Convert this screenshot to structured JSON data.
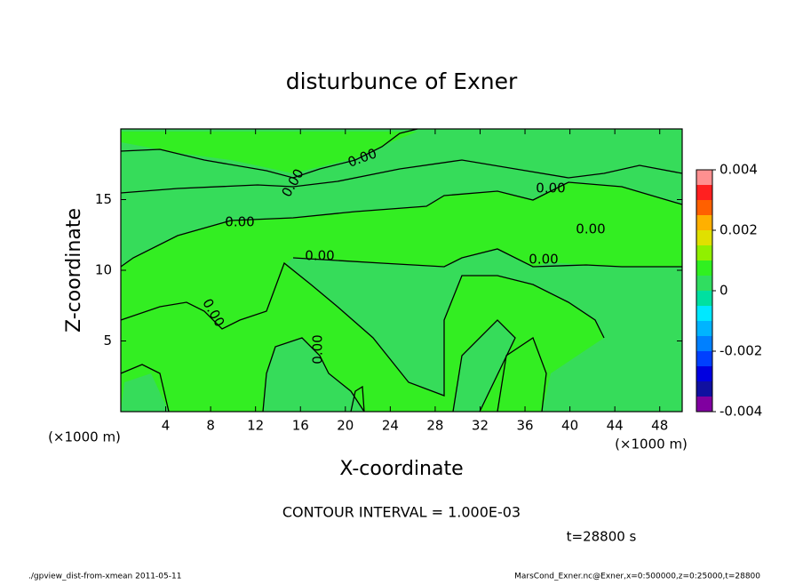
{
  "chart_data": {
    "type": "contour",
    "title": "disturbunce of Exner",
    "x_label": "X-coordinate",
    "y_label": "Z-coordinate",
    "x_unit_left": "(×1000 m)",
    "x_unit_right": "(×1000 m)",
    "xlim": [
      0,
      50
    ],
    "xticks": [
      4,
      8,
      12,
      16,
      20,
      24,
      28,
      32,
      36,
      40,
      44,
      48
    ],
    "ylim": [
      0,
      20
    ],
    "yticks": [
      5,
      10,
      15
    ],
    "contour_labels": [
      "0.00",
      "0.00",
      "0.00",
      "0.00",
      "0.00",
      "0.00",
      "0.00",
      "0.00",
      "0.00"
    ],
    "colorbar": {
      "lim": [
        -0.004,
        0.004
      ],
      "ticks": [
        -0.004,
        -0.002,
        0,
        0.002,
        0.004
      ],
      "colors": [
        "#8000a0",
        "#1010a0",
        "#0000e0",
        "#0040ff",
        "#0080ff",
        "#00b4ff",
        "#00e8ff",
        "#00e0a0",
        "#30dd60",
        "#30f020",
        "#90f000",
        "#e0e000",
        "#ffb000",
        "#ff6000",
        "#ff2020",
        "#ff9090"
      ]
    },
    "contour_interval": "CONTOUR INTERVAL = 1.000E-03",
    "time": "t=28800 s",
    "footer_left": "./gpview_dist-from-xmean  2011-05-11",
    "footer_right": "MarsCond_Exner.nc@Exner,x=0:500000,z=0:25000,t=28800"
  }
}
